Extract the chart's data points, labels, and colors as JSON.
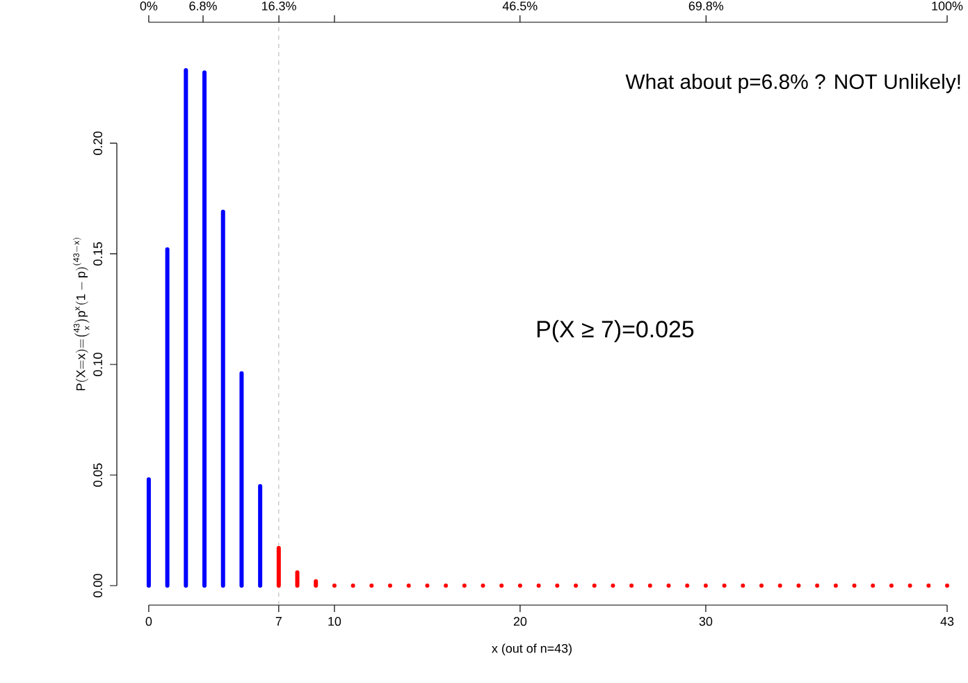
{
  "chart_data": {
    "type": "bar",
    "xlabel": "x (out of n=43)",
    "ylabel": "\\mathsf{P(X{=}x)}{=}\\binom{\\mathsf{43}}{\\mathsf{x}}\\mathsf{p}^{\\mathsf{x}}\\mathsf{(1-p)}^{\\mathsf{(43-x)}}",
    "series": [
      {
        "color": "#0000ff",
        "x": [
          0,
          1,
          2,
          3,
          4,
          5,
          6
        ],
        "values": [
          0.048,
          0.152,
          0.233,
          0.232,
          0.169,
          0.096,
          0.045
        ]
      },
      {
        "color": "#ff0000",
        "x": [
          7,
          8,
          9,
          10,
          11,
          12,
          13,
          14,
          15,
          16,
          17,
          18,
          19,
          20,
          21,
          22,
          23,
          24,
          25,
          26,
          27,
          28,
          29,
          30,
          31,
          32,
          33,
          34,
          35,
          36,
          37,
          38,
          39,
          40,
          41,
          42,
          43
        ],
        "values": [
          0.017,
          0.006,
          0.002,
          0,
          0,
          0,
          0,
          0,
          0,
          0,
          0,
          0,
          0,
          0,
          0,
          0,
          0,
          0,
          0,
          0,
          0,
          0,
          0,
          0,
          0,
          0,
          0,
          0,
          0,
          0,
          0,
          0,
          0,
          0,
          0,
          0,
          0
        ]
      }
    ],
    "xlim": [
      -1.72,
      43
    ],
    "xticks": [
      0,
      7,
      10,
      20,
      30,
      43
    ],
    "ylim": [
      -0.0088,
      0.2547
    ],
    "yticks": [
      {
        "value": 0,
        "label": "0.00"
      },
      {
        "value": 0.05,
        "label": "0.05"
      },
      {
        "value": 0.1,
        "label": "0.10"
      },
      {
        "value": 0.15,
        "label": "0.15"
      },
      {
        "value": 0.2,
        "label": "0.20"
      }
    ],
    "x2lim": [
      -4.0,
      100
    ],
    "x2ticks": [
      {
        "value": 0,
        "label": "0%"
      },
      {
        "value": 6.8,
        "label": "6.8%"
      },
      {
        "value": 16.3,
        "label": "16.3%"
      },
      {
        "value": 23.26,
        "label": null
      },
      {
        "value": 46.5,
        "label": "46.5%"
      },
      {
        "value": 69.8,
        "label": "69.8%"
      },
      {
        "value": 100,
        "label": "100%"
      }
    ],
    "ref_lines": [
      {
        "axis": "x",
        "value": 7,
        "color": "#bebebe",
        "line_style": "dashed"
      }
    ],
    "annotations": [
      "What about p=6.8% ? NOT Unlikely!",
      "P(X ≥ 7)=0.025"
    ],
    "grid": false
  }
}
